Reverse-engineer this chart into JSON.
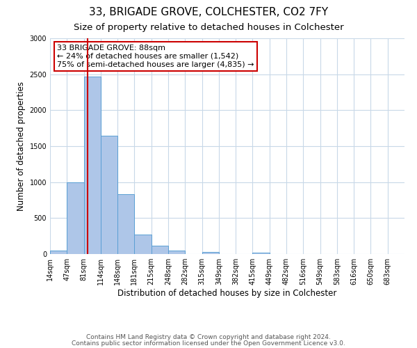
{
  "title": "33, BRIGADE GROVE, COLCHESTER, CO2 7FY",
  "subtitle": "Size of property relative to detached houses in Colchester",
  "xlabel": "Distribution of detached houses by size in Colchester",
  "ylabel": "Number of detached properties",
  "bin_labels": [
    "14sqm",
    "47sqm",
    "81sqm",
    "114sqm",
    "148sqm",
    "181sqm",
    "215sqm",
    "248sqm",
    "282sqm",
    "315sqm",
    "349sqm",
    "382sqm",
    "415sqm",
    "449sqm",
    "482sqm",
    "516sqm",
    "549sqm",
    "583sqm",
    "616sqm",
    "650sqm",
    "683sqm"
  ],
  "bar_values": [
    50,
    1000,
    2470,
    1650,
    830,
    270,
    120,
    50,
    0,
    30,
    0,
    0,
    15,
    0,
    0,
    0,
    0,
    0,
    0,
    0,
    0
  ],
  "bar_color": "#aec6e8",
  "bar_edge_color": "#5a9fd4",
  "property_line_color": "#cc0000",
  "annotation_line1": "33 BRIGADE GROVE: 88sqm",
  "annotation_line2": "← 24% of detached houses are smaller (1,542)",
  "annotation_line3": "75% of semi-detached houses are larger (4,835) →",
  "annotation_box_color": "#cc0000",
  "ylim": [
    0,
    3000
  ],
  "yticks": [
    0,
    500,
    1000,
    1500,
    2000,
    2500,
    3000
  ],
  "footer_line1": "Contains HM Land Registry data © Crown copyright and database right 2024.",
  "footer_line2": "Contains public sector information licensed under the Open Government Licence v3.0.",
  "bg_color": "#ffffff",
  "grid_color": "#c8d8e8",
  "title_fontsize": 11,
  "subtitle_fontsize": 9.5,
  "axis_label_fontsize": 8.5,
  "tick_fontsize": 7,
  "annotation_fontsize": 8,
  "footer_fontsize": 6.5
}
